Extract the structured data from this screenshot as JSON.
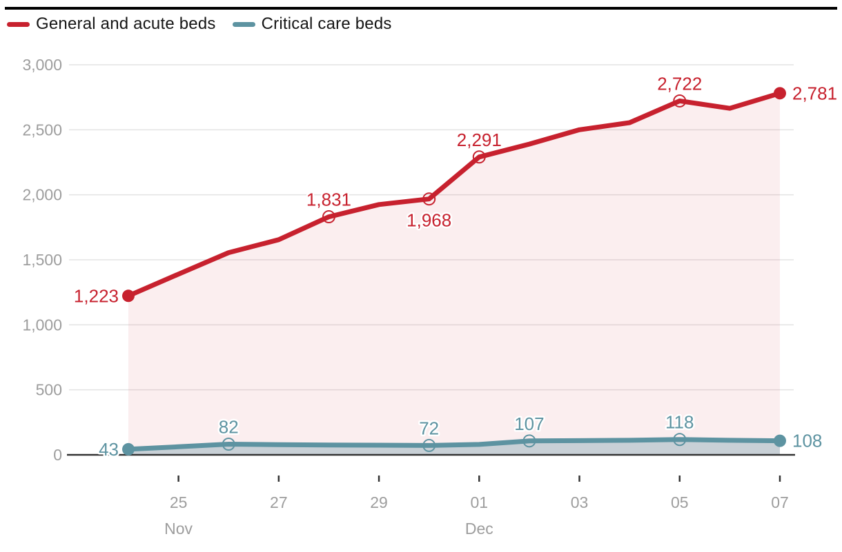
{
  "legend": {
    "items": [
      {
        "label": "General and acute beds",
        "color": "#c7212e"
      },
      {
        "label": "Critical care beds",
        "color": "#5d93a1"
      }
    ]
  },
  "chart_data": {
    "type": "line",
    "x_dates": [
      "24 Nov",
      "25 Nov",
      "26 Nov",
      "27 Nov",
      "28 Nov",
      "29 Nov",
      "30 Nov",
      "01 Dec",
      "02 Dec",
      "03 Dec",
      "04 Dec",
      "05 Dec",
      "06 Dec",
      "07 Dec"
    ],
    "ylim": [
      0,
      3000
    ],
    "grid": true,
    "legend_position": "top-left",
    "yticks": [
      {
        "value": 0,
        "label": "0"
      },
      {
        "value": 500,
        "label": "500"
      },
      {
        "value": 1000,
        "label": "1,000"
      },
      {
        "value": 1500,
        "label": "1,500"
      },
      {
        "value": 2000,
        "label": "2,000"
      },
      {
        "value": 2500,
        "label": "2,500"
      },
      {
        "value": 3000,
        "label": "3,000"
      }
    ],
    "xticks": [
      {
        "index": 1,
        "label": "25",
        "month": "Nov"
      },
      {
        "index": 3,
        "label": "27",
        "month": ""
      },
      {
        "index": 5,
        "label": "29",
        "month": ""
      },
      {
        "index": 7,
        "label": "01",
        "month": "Dec"
      },
      {
        "index": 9,
        "label": "03",
        "month": ""
      },
      {
        "index": 11,
        "label": "05",
        "month": ""
      },
      {
        "index": 13,
        "label": "07",
        "month": ""
      }
    ],
    "series": [
      {
        "name": "General and acute beds",
        "style": "line-with-area",
        "color": "#c7212e",
        "fill": "rgba(199,33,46,0.08)",
        "values": [
          1223,
          1390,
          1555,
          1655,
          1831,
          1925,
          1968,
          2291,
          2390,
          2500,
          2555,
          2722,
          2665,
          2781
        ],
        "point_labels": [
          {
            "index": 0,
            "label": "1,223",
            "placement": "left",
            "marker": "filled"
          },
          {
            "index": 4,
            "label": "1,831",
            "placement": "above",
            "marker": "open"
          },
          {
            "index": 6,
            "label": "1,968",
            "placement": "below",
            "marker": "open"
          },
          {
            "index": 7,
            "label": "2,291",
            "placement": "above",
            "marker": "open"
          },
          {
            "index": 11,
            "label": "2,722",
            "placement": "above",
            "marker": "open"
          },
          {
            "index": 13,
            "label": "2,781",
            "placement": "right",
            "marker": "filled"
          }
        ]
      },
      {
        "name": "Critical care beds",
        "style": "line-with-area",
        "color": "#5d93a1",
        "fill": "rgba(93,147,161,0.32)",
        "values": [
          43,
          62,
          82,
          78,
          76,
          74,
          72,
          80,
          107,
          109,
          112,
          118,
          112,
          108
        ],
        "point_labels": [
          {
            "index": 0,
            "label": "43",
            "placement": "left",
            "marker": "filled"
          },
          {
            "index": 2,
            "label": "82",
            "placement": "above",
            "marker": "open"
          },
          {
            "index": 6,
            "label": "72",
            "placement": "above",
            "marker": "open"
          },
          {
            "index": 8,
            "label": "107",
            "placement": "above",
            "marker": "open"
          },
          {
            "index": 11,
            "label": "118",
            "placement": "above",
            "marker": "open"
          },
          {
            "index": 13,
            "label": "108",
            "placement": "right",
            "marker": "filled"
          }
        ]
      }
    ],
    "colors": {
      "grid": "#e3e3e3",
      "axis": "#333333",
      "tick_text": "#9d9d9d",
      "top_bar": "#000000"
    }
  }
}
